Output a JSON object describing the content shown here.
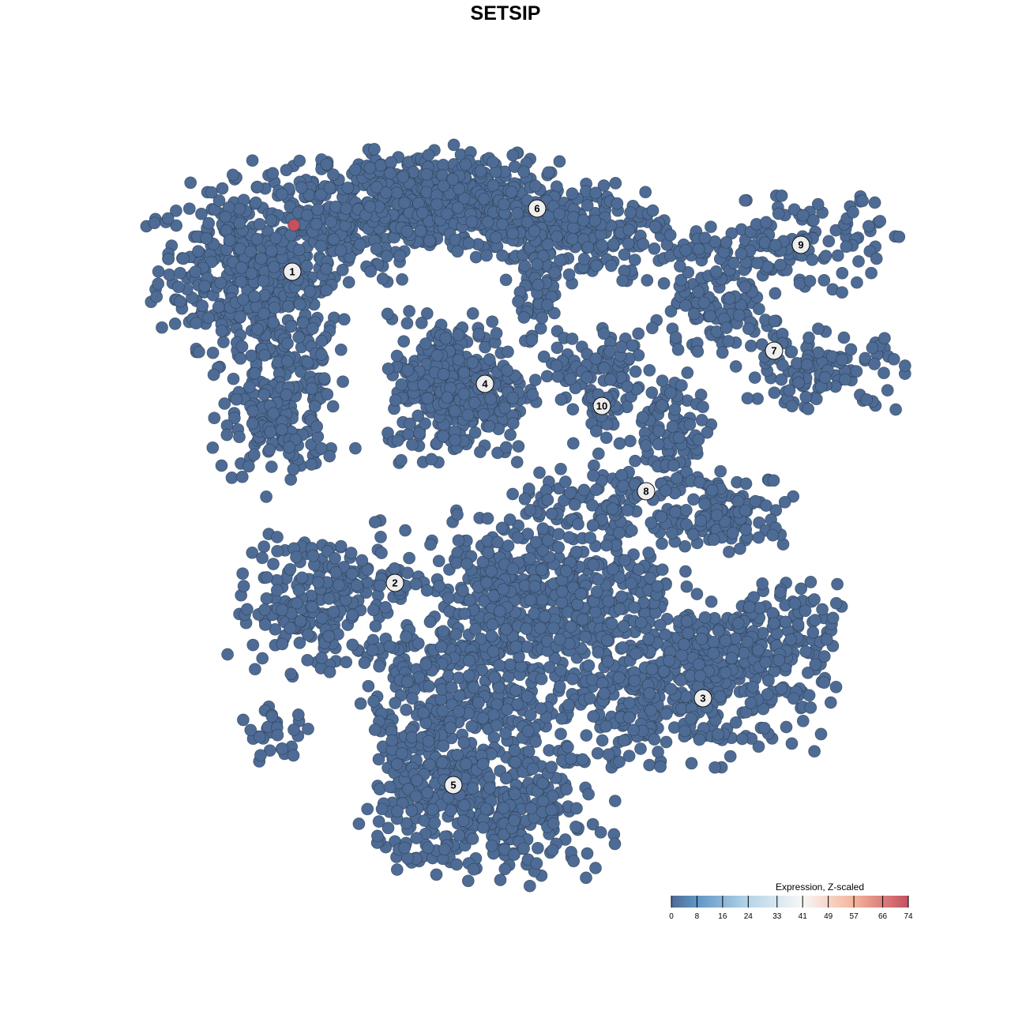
{
  "chart_data": {
    "type": "scatter",
    "title": "SETSIP",
    "xlabel": "",
    "ylabel": "",
    "axes_visible": false,
    "grid": false,
    "point_color_default": "#4d6b94",
    "point_stroke": "#2b3a4f",
    "clusters": [
      {
        "label": "1",
        "center": [
          -13.5,
          14.8
        ],
        "blobs": [
          [
            -17,
            15,
            2.5,
            2.5,
            300
          ],
          [
            -14,
            9,
            2,
            3.5,
            250
          ],
          [
            -14.5,
            5,
            1.5,
            1.5,
            80
          ],
          [
            -11,
            18,
            3,
            2,
            250
          ]
        ]
      },
      {
        "label": "2",
        "center": [
          -7,
          -4.9
        ],
        "blobs": [
          [
            -12,
            -7.5,
            2.5,
            1.5,
            120
          ],
          [
            -11,
            -4.5,
            2.5,
            1.2,
            100
          ],
          [
            -14.5,
            -14.5,
            1.2,
            0.8,
            30
          ]
        ]
      },
      {
        "label": "3",
        "center": [
          12.5,
          -12.2
        ],
        "blobs": [
          [
            13,
            -11,
            3.5,
            2.5,
            350
          ],
          [
            16,
            -8,
            2.5,
            1.5,
            100
          ]
        ]
      },
      {
        "label": "4",
        "center": [
          -1.3,
          7.7
        ],
        "blobs": [
          [
            -3,
            7.5,
            2.2,
            2.2,
            350
          ]
        ]
      },
      {
        "label": "5",
        "center": [
          -3.3,
          -17.7
        ],
        "blobs": [
          [
            -1,
            -9.5,
            3.5,
            4,
            500
          ],
          [
            4,
            -5,
            3.5,
            2,
            300
          ],
          [
            -1,
            -19.5,
            3.5,
            2,
            350
          ],
          [
            -5.5,
            -15,
            1.8,
            3,
            150
          ],
          [
            7.5,
            -12,
            1.5,
            2.5,
            100
          ]
        ]
      },
      {
        "label": "6",
        "center": [
          2,
          18.8
        ],
        "blobs": [
          [
            -6,
            19.5,
            2.5,
            1.5,
            250
          ],
          [
            -1,
            19,
            2.5,
            1.5,
            250
          ],
          [
            5,
            17.5,
            2.5,
            1.5,
            200
          ],
          [
            2,
            13.5,
            1,
            1.5,
            50
          ]
        ]
      },
      {
        "label": "7",
        "center": [
          17,
          9.8
        ],
        "blobs": [
          [
            13,
            12,
            2,
            1.2,
            100
          ],
          [
            20,
            8.5,
            2.5,
            1.2,
            120
          ]
        ]
      },
      {
        "label": "8",
        "center": [
          8.9,
          0.9
        ],
        "blobs": [
          [
            10.5,
            5,
            1.5,
            2,
            100
          ],
          [
            14,
            -0.5,
            2,
            1.2,
            120
          ],
          [
            6,
            0,
            2.5,
            1.2,
            100
          ]
        ]
      },
      {
        "label": "9",
        "center": [
          18.7,
          16.5
        ],
        "blobs": [
          [
            18.5,
            16.5,
            3,
            1.5,
            120
          ],
          [
            12.5,
            16,
            1.5,
            0.8,
            40
          ]
        ]
      },
      {
        "label": "10",
        "center": [
          6.1,
          6.3
        ],
        "blobs": [
          [
            6,
            8.5,
            2,
            1.2,
            80
          ],
          [
            6,
            6,
            0.8,
            1.2,
            30
          ]
        ]
      }
    ],
    "highlighted_points": [
      {
        "x": -13.4,
        "y": 17.75,
        "value": 74
      }
    ],
    "default_value": 0,
    "colorbar": {
      "title": "Expression, Z-scaled",
      "ticks": [
        "0",
        "8",
        "16",
        "24",
        "33",
        "41",
        "49",
        "57",
        "66",
        "74"
      ],
      "range": [
        0,
        74
      ],
      "stops": [
        {
          "value": 0,
          "color": "#4d6b94"
        },
        {
          "value": 8,
          "color": "#6096c6"
        },
        {
          "value": 24,
          "color": "#b5d5e8"
        },
        {
          "value": 41,
          "color": "#f7f7f7"
        },
        {
          "value": 57,
          "color": "#f4b49a"
        },
        {
          "value": 74,
          "color": "#c45060"
        }
      ],
      "placement": "bottom-right"
    }
  }
}
